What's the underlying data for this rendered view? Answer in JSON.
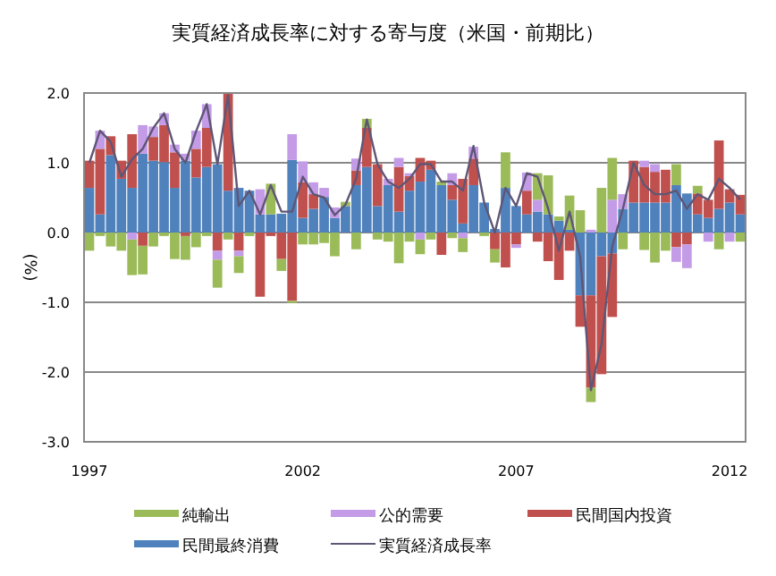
{
  "chart_data": {
    "type": "bar",
    "title": "実質経済成長率に対する寄与度（米国・前期比）",
    "ylabel": "(%)",
    "categories": [
      "1997",
      null,
      null,
      null,
      null,
      null,
      null,
      null,
      null,
      null,
      null,
      null,
      null,
      null,
      null,
      null,
      null,
      null,
      null,
      null,
      "2002",
      null,
      null,
      null,
      null,
      null,
      null,
      null,
      null,
      null,
      null,
      null,
      null,
      null,
      null,
      null,
      null,
      null,
      null,
      null,
      "2007",
      null,
      null,
      null,
      null,
      null,
      null,
      null,
      null,
      null,
      null,
      null,
      null,
      null,
      null,
      null,
      null,
      null,
      null,
      null,
      "2012",
      null
    ],
    "stacked": true,
    "ylim": [
      -3,
      2
    ],
    "yticks": [
      {
        "value": -3,
        "label": "-3.0"
      },
      {
        "value": -2,
        "label": "-2.0"
      },
      {
        "value": -1,
        "label": "-1.0"
      },
      {
        "value": 0,
        "label": "0.0"
      },
      {
        "value": 1,
        "label": "1.0"
      },
      {
        "value": 2,
        "label": "2.0"
      }
    ],
    "grid": "y",
    "legend": "bottom",
    "series": [
      {
        "name": "民間最終消費",
        "color": "#4f81bd",
        "values": [
          0.64,
          0.26,
          1.11,
          0.77,
          0.64,
          1.13,
          1.03,
          1.01,
          0.64,
          1.03,
          0.79,
          0.94,
          0.98,
          0.6,
          0.64,
          0.6,
          0.26,
          0.26,
          0.27,
          1.04,
          0.21,
          0.34,
          0.51,
          0.21,
          0.38,
          0.68,
          0.94,
          0.38,
          0.68,
          0.3,
          0.6,
          0.73,
          0.9,
          0.68,
          0.47,
          0.13,
          0.68,
          0.43,
          0.05,
          0.64,
          0.38,
          0.26,
          0.3,
          0.26,
          0.17,
          0.04,
          -0.9,
          -0.9,
          -0.34,
          -0.3,
          0.34,
          0.43,
          0.43,
          0.43,
          0.43,
          0.68,
          0.56,
          0.26,
          0.21,
          0.34,
          0.43,
          0.26
        ]
      },
      {
        "name": "民間国内投資",
        "color": "#c0504d",
        "values": [
          0.39,
          0.94,
          0.27,
          0.26,
          0.77,
          -0.19,
          0.34,
          0.53,
          0.51,
          -0.05,
          0.41,
          0.56,
          -0.26,
          1.4,
          -0.26,
          0,
          -0.92,
          -0.05,
          -0.38,
          -0.98,
          0.51,
          0.21,
          0,
          0,
          0,
          0.21,
          0.56,
          0.6,
          0,
          0.64,
          0.21,
          0.34,
          0.13,
          -0.32,
          0.21,
          0.64,
          0.38,
          0,
          -0.24,
          -0.5,
          -0.17,
          0.34,
          -0.13,
          -0.41,
          -0.68,
          -0.26,
          -0.45,
          -1.32,
          -1.69,
          -0.91,
          0,
          0.6,
          0.51,
          0.44,
          0.47,
          -0.21,
          -0.17,
          0.3,
          0.26,
          0.98,
          0.19,
          0.28
        ]
      },
      {
        "name": "公的需要",
        "color": "#c39be6",
        "values": [
          0,
          0.26,
          0,
          0,
          -0.1,
          0.41,
          0.15,
          0.17,
          0.11,
          0.1,
          0.26,
          0.34,
          -0.13,
          0,
          -0.08,
          0,
          0.36,
          0,
          0,
          0.37,
          0.3,
          0.17,
          0.13,
          0.15,
          0,
          0.17,
          0,
          0,
          0.09,
          0.13,
          0.04,
          -0.1,
          0,
          0,
          0.17,
          -0.08,
          0.17,
          0,
          0,
          0,
          -0.05,
          0.26,
          0.17,
          0,
          0,
          0,
          0,
          0.04,
          0,
          0.47,
          0.21,
          0,
          0.09,
          0.11,
          0,
          -0.21,
          -0.34,
          0,
          -0.13,
          0,
          -0.13,
          0
        ]
      },
      {
        "name": "純輸出",
        "color": "#9bbb59",
        "values": [
          -0.26,
          -0.05,
          -0.2,
          -0.26,
          -0.51,
          -0.41,
          -0.2,
          -0.05,
          -0.38,
          -0.34,
          -0.21,
          -0.05,
          -0.4,
          -0.1,
          -0.24,
          -0.05,
          0,
          0.44,
          -0.17,
          -0.03,
          -0.17,
          -0.17,
          -0.15,
          -0.34,
          0.06,
          -0.24,
          0.13,
          -0.1,
          -0.13,
          -0.44,
          -0.13,
          -0.21,
          -0.1,
          0.05,
          -0.08,
          -0.2,
          0,
          -0.05,
          -0.19,
          0.51,
          0,
          0,
          0.38,
          0.56,
          0.06,
          0.49,
          0.32,
          -0.21,
          0.64,
          0.6,
          -0.24,
          0,
          -0.25,
          -0.43,
          -0.26,
          0.3,
          0,
          0.11,
          0,
          -0.24,
          0,
          -0.13
        ]
      },
      {
        "name": "実質経済成長率",
        "type": "line",
        "color": "#5f5676",
        "values": [
          1.0,
          1.46,
          1.3,
          0.8,
          1.05,
          1.2,
          1.5,
          1.71,
          1.2,
          1.0,
          1.45,
          1.84,
          0.98,
          1.97,
          0.38,
          0.6,
          0.26,
          0.68,
          0.3,
          0.3,
          0.8,
          0.55,
          0.5,
          0.25,
          0.4,
          0.77,
          1.62,
          0.98,
          0.73,
          0.64,
          0.77,
          0.98,
          0.98,
          0.73,
          0.73,
          0.6,
          1.24,
          0.43,
          0.0,
          0.64,
          0.38,
          0.85,
          0.8,
          0.34,
          -0.26,
          0.3,
          -0.35,
          -2.26,
          -1.6,
          -0.2,
          0.34,
          1.0,
          0.68,
          0.55,
          0.55,
          0.6,
          0.34,
          0.55,
          0.47,
          0.77,
          0.64,
          0.47
        ]
      }
    ]
  }
}
